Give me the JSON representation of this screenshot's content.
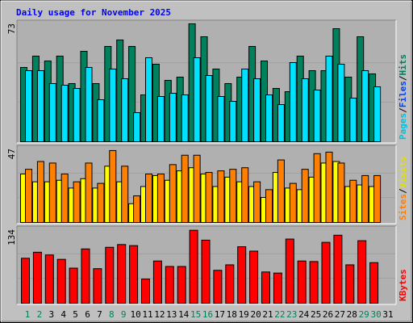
{
  "title": "Daily usage for November 2025",
  "charts": [
    {
      "type": "bar",
      "ylim": [
        0,
        73
      ],
      "yticks": [
        73
      ],
      "legend": [
        {
          "label": "Pages",
          "color": "#00c0e0"
        },
        {
          "label": "Files",
          "color": "#0040ff"
        },
        {
          "label": "Hits",
          "color": "#00805c"
        }
      ],
      "legend_separator": "/",
      "series": [
        {
          "name": "Hits",
          "color": "#00805c",
          "values": [
            46,
            53,
            50,
            53,
            36,
            56,
            36,
            59,
            63,
            59,
            29,
            48,
            38,
            40,
            73,
            65,
            45,
            36,
            40,
            59,
            50,
            33,
            31,
            53,
            44,
            44,
            70,
            40,
            65,
            42,
            null
          ]
        },
        {
          "name": "Pages",
          "color": "#00e0ff",
          "values": [
            44,
            44,
            36,
            35,
            33,
            46,
            26,
            45,
            39,
            18,
            52,
            28,
            30,
            29,
            52,
            41,
            28,
            25,
            45,
            39,
            29,
            23,
            49,
            39,
            32,
            53,
            48,
            27,
            44,
            34,
            null
          ]
        }
      ]
    },
    {
      "type": "bar",
      "ylim": [
        0,
        47
      ],
      "yticks": [
        47
      ],
      "legend": [
        {
          "label": "Sites",
          "color": "#ff8000"
        },
        {
          "label": "Visits",
          "color": "#e0e000"
        }
      ],
      "legend_separator": "/",
      "series": [
        {
          "name": "Visits",
          "color": "#ffff00",
          "values": [
            31,
            26,
            26,
            27,
            22,
            28,
            22,
            36,
            26,
            12,
            23,
            30,
            27,
            33,
            35,
            31,
            23,
            29,
            26,
            23,
            16,
            32,
            22,
            21,
            29,
            38,
            39,
            23,
            24,
            23,
            null
          ]
        },
        {
          "name": "Sites",
          "color": "#ff8000",
          "values": [
            34,
            39,
            38,
            31,
            26,
            38,
            25,
            46,
            36,
            17,
            31,
            31,
            37,
            43,
            43,
            32,
            33,
            34,
            35,
            26,
            21,
            40,
            25,
            34,
            44,
            45,
            38,
            27,
            30,
            30,
            null
          ]
        }
      ]
    },
    {
      "type": "bar",
      "ylim": [
        0,
        134
      ],
      "yticks": [
        134
      ],
      "legend": [
        {
          "label": "KBytes",
          "color": "#ff0000"
        }
      ],
      "series": [
        {
          "name": "KBytes",
          "color": "#ff0000",
          "values": [
            82,
            93,
            88,
            80,
            64,
            99,
            63,
            102,
            107,
            105,
            44,
            77,
            67,
            67,
            133,
            115,
            60,
            70,
            103,
            95,
            57,
            55,
            117,
            77,
            76,
            111,
            124,
            70,
            114,
            74,
            null
          ]
        }
      ],
      "categories": [
        "1",
        "2",
        "3",
        "4",
        "5",
        "6",
        "7",
        "8",
        "9",
        "10",
        "11",
        "12",
        "13",
        "14",
        "15",
        "16",
        "17",
        "18",
        "19",
        "20",
        "21",
        "22",
        "23",
        "24",
        "25",
        "26",
        "27",
        "28",
        "29",
        "30",
        "31"
      ],
      "category_colors": [
        "#00805c",
        "#00805c",
        "#000000",
        "#000000",
        "#000000",
        "#000000",
        "#000000",
        "#00805c",
        "#00805c",
        "#000000",
        "#000000",
        "#000000",
        "#000000",
        "#000000",
        "#00805c",
        "#00805c",
        "#000000",
        "#000000",
        "#000000",
        "#000000",
        "#000000",
        "#00805c",
        "#00805c",
        "#000000",
        "#000000",
        "#000000",
        "#000000",
        "#000000",
        "#00805c",
        "#00805c",
        "#000000"
      ]
    }
  ]
}
